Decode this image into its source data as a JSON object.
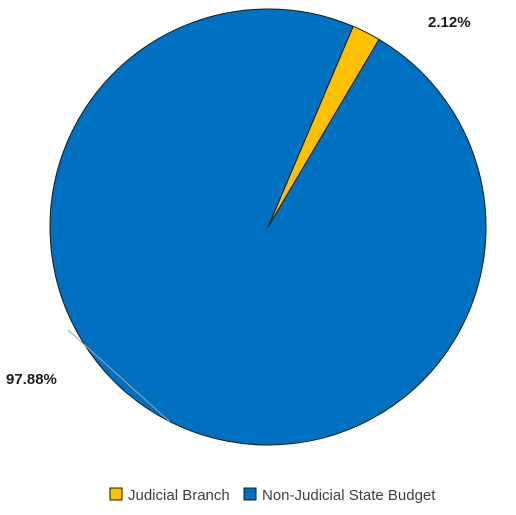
{
  "chart_data": {
    "type": "pie",
    "title": "",
    "slices": [
      {
        "label": "Judicial Branch",
        "value": 2.12,
        "display": "2.12%",
        "color": "#FFC000"
      },
      {
        "label": "Non-Judicial State Budget",
        "value": 97.88,
        "display": "97.88%",
        "color": "#0070C0"
      }
    ],
    "start_angle_deg": 23,
    "direction": "clockwise",
    "legend": {
      "position": "bottom",
      "items": [
        "Judicial Branch",
        "Non-Judicial State Budget"
      ]
    },
    "outline_color": "#1a1a1a",
    "leader_line_color": "#a6a6a6"
  }
}
